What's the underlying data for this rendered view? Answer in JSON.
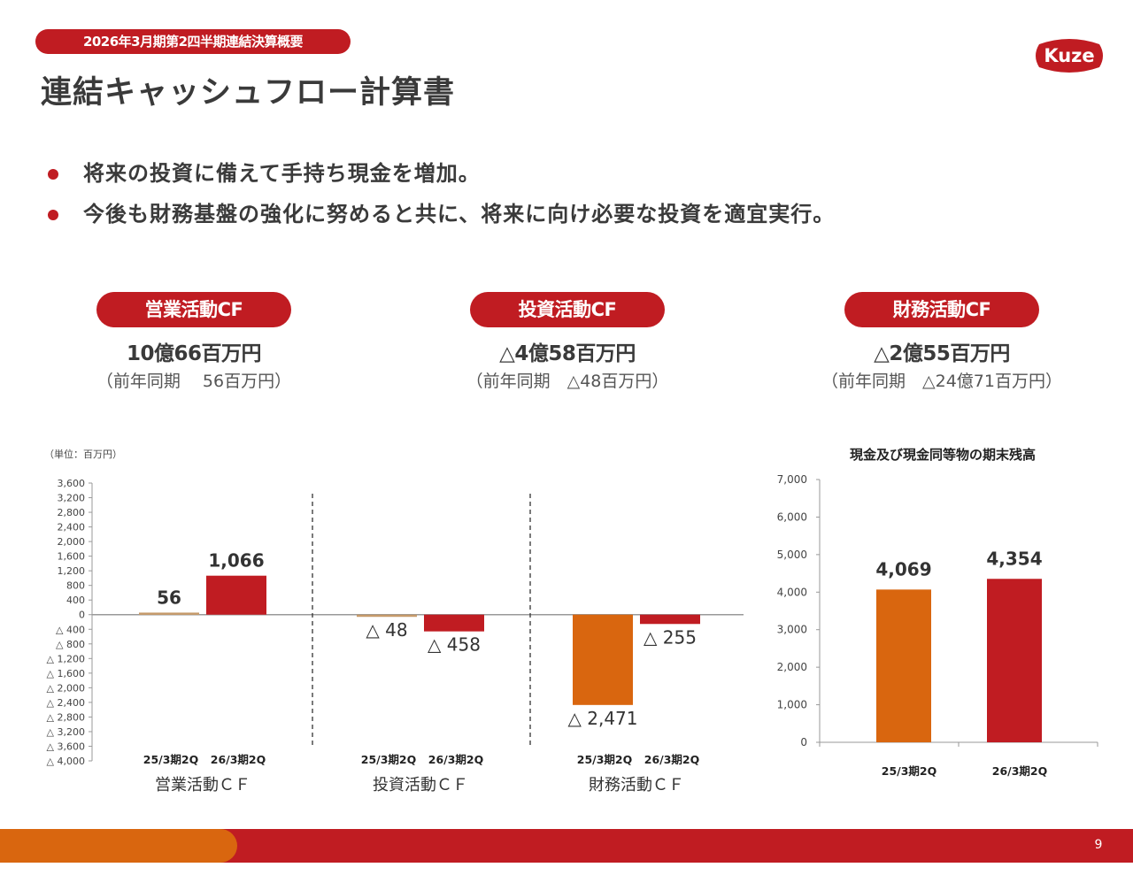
{
  "header": {
    "tag": "2026年3月期第2四半期連結決算概要",
    "title": "連結キャッシュフロー計算書",
    "logo_text": "Kuze"
  },
  "bullets": [
    "将来の投資に備えて手持ち現金を増加。",
    "今後も財務基盤の強化に努めると共に、将来に向け必要な投資を適宜実行。"
  ],
  "kpis": [
    {
      "label": "営業活動CF",
      "value": "10億66百万円",
      "prev": "（前年同期　 56百万円）"
    },
    {
      "label": "投資活動CF",
      "value": "△4億58百万円",
      "prev": "（前年同期　△48百万円）"
    },
    {
      "label": "財務活動CF",
      "value": "△2億55百万円",
      "prev": "（前年同期　△24億71百万円）"
    }
  ],
  "colors": {
    "red": "#c01c22",
    "orange": "#d9660f",
    "bar_tan": "#c69a6a"
  },
  "unit_note": "（単位：百万円）",
  "chart_data": [
    {
      "type": "bar",
      "title": "",
      "ylim": [
        -4000,
        3600
      ],
      "yticks": [
        3600,
        3200,
        2800,
        2400,
        2000,
        1600,
        1200,
        800,
        400,
        0,
        -400,
        -800,
        -1200,
        -1600,
        -2000,
        -2400,
        -2800,
        -3200,
        -3600,
        -4000
      ],
      "ytick_labels": [
        "3,600",
        "3,200",
        "2,800",
        "2,400",
        "2,000",
        "1,600",
        "1,200",
        "800",
        "400",
        "0",
        "△ 400",
        "△ 800",
        "△ 1,200",
        "△ 1,600",
        "△ 2,000",
        "△ 2,400",
        "△ 2,800",
        "△ 3,200",
        "△ 3,600",
        "△ 4,000"
      ],
      "groups": [
        {
          "name": "営業活動ＣＦ",
          "categories": [
            "25/3期2Q",
            "26/3期2Q"
          ],
          "values": [
            56,
            1066
          ],
          "labels": [
            "56",
            "1,066"
          ]
        },
        {
          "name": "投資活動ＣＦ",
          "categories": [
            "25/3期2Q",
            "26/3期2Q"
          ],
          "values": [
            -48,
            -458
          ],
          "labels": [
            "△ 48",
            "△ 458"
          ]
        },
        {
          "name": "財務活動ＣＦ",
          "categories": [
            "25/3期2Q",
            "26/3期2Q"
          ],
          "values": [
            -2471,
            -255
          ],
          "labels": [
            "△ 2,471",
            "△ 255"
          ]
        }
      ]
    },
    {
      "type": "bar",
      "title": "現金及び現金同等物の期末残高",
      "ylim": [
        0,
        7000
      ],
      "yticks": [
        0,
        1000,
        2000,
        3000,
        4000,
        5000,
        6000,
        7000
      ],
      "ytick_labels": [
        "0",
        "1,000",
        "2,000",
        "3,000",
        "4,000",
        "5,000",
        "6,000",
        "7,000"
      ],
      "categories": [
        "25/3期2Q",
        "26/3期2Q"
      ],
      "values": [
        4069,
        4354
      ],
      "labels": [
        "4,069",
        "4,354"
      ]
    }
  ],
  "page_number": "9"
}
